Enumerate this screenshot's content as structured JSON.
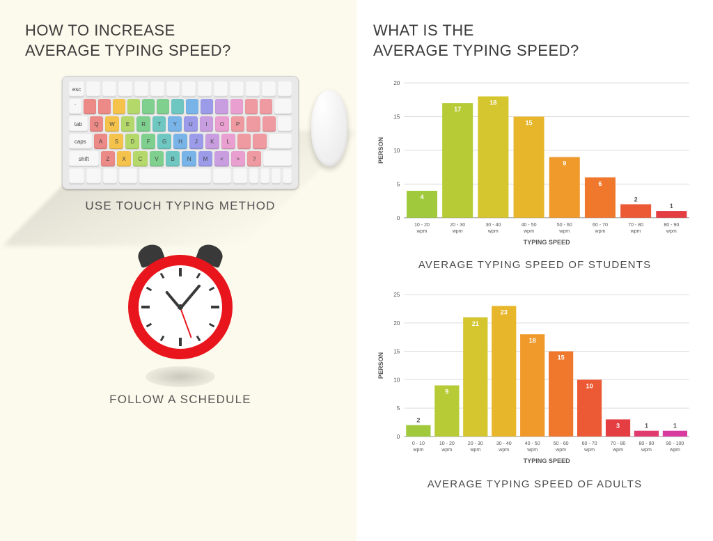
{
  "left": {
    "title_line1": "HOW TO INCREASE",
    "title_line2": "AVERAGE TYPING SPEED?",
    "panel_bg": "#fcfaec",
    "title_color": "#3c3c3c",
    "tip1_caption": "USE TOUCH TYPING METHOD",
    "tip2_caption": "FOLLOW A SCHEDULE",
    "keyboard": {
      "base_color": "#e9e9e9",
      "grey_key": "#f7f7f7",
      "finger_colors": {
        "pinkyL": "#ec8a87",
        "ringL": "#f5c24c",
        "middleL": "#b4d96a",
        "indexL": "#7fcf8e",
        "indexL2": "#6fc7c1",
        "indexR": "#78b4e8",
        "indexR2": "#9b9be9",
        "middleR": "#c99ee0",
        "ringR": "#e9a0d0",
        "pinkyR": "#ef9aa1"
      },
      "row_letters": [
        [
          "Q",
          "W",
          "E",
          "R",
          "T",
          "Y",
          "U",
          "I",
          "O",
          "P"
        ],
        [
          "A",
          "S",
          "D",
          "F",
          "G",
          "H",
          "J",
          "K",
          "L"
        ],
        [
          "Z",
          "X",
          "C",
          "V",
          "B",
          "N",
          "M"
        ]
      ]
    },
    "clock": {
      "ring_color": "#e8151c",
      "face_color": "#ffffff",
      "bell_color": "#393939",
      "hour_angle": -40,
      "minute_angle": 40,
      "second_angle": 160
    }
  },
  "right": {
    "title_line1": "WHAT IS THE",
    "title_line2": "AVERAGE TYPING SPEED?",
    "title_color": "#3c3c3c",
    "charts": [
      {
        "caption": "AVERAGE TYPING SPEED OF STUDENTS",
        "xlabel": "TYPING SPEED",
        "ylabel": "PERSON",
        "ylim": [
          0,
          20
        ],
        "ytick_step": 5,
        "categories": [
          "10 - 20 wpm",
          "20 - 30 wpm",
          "30 - 40 wpm",
          "40 - 50 wpm",
          "50 - 60 wpm",
          "60 - 70 wpm",
          "70 - 80 wpm",
          "80 - 90 wpm"
        ],
        "values": [
          4,
          17,
          18,
          15,
          9,
          6,
          2,
          1
        ],
        "bar_colors": [
          "#a0c93b",
          "#b6cb35",
          "#d5c52f",
          "#e8b62b",
          "#ef9a2a",
          "#f0782c",
          "#ec5a35",
          "#e43d42"
        ],
        "grid_color": "#dcdcdc",
        "bg_color": "#ffffff",
        "label_above_threshold": 2
      },
      {
        "caption": "AVERAGE TYPING SPEED OF ADULTS",
        "xlabel": "TYPING SPEED",
        "ylabel": "PERSON",
        "ylim": [
          0,
          25
        ],
        "ytick_step": 5,
        "categories": [
          "0 - 10 wpm",
          "10 - 20 wpm",
          "20 - 30 wpm",
          "30 - 40 wpm",
          "40 - 50 wpm",
          "50 - 60 wpm",
          "60 - 70 wpm",
          "70 - 80 wpm",
          "80 - 90 wpm",
          "90 - 100 wpm"
        ],
        "values": [
          2,
          9,
          21,
          23,
          18,
          15,
          10,
          3,
          1,
          1
        ],
        "bar_colors": [
          "#a0c93b",
          "#b6cb35",
          "#d5c52f",
          "#e8b62b",
          "#ef9a2a",
          "#f0782c",
          "#ec5a35",
          "#e43d42",
          "#e03a6e",
          "#d83aa0"
        ],
        "grid_color": "#dcdcdc",
        "bg_color": "#ffffff",
        "label_above_threshold": 2
      }
    ]
  }
}
